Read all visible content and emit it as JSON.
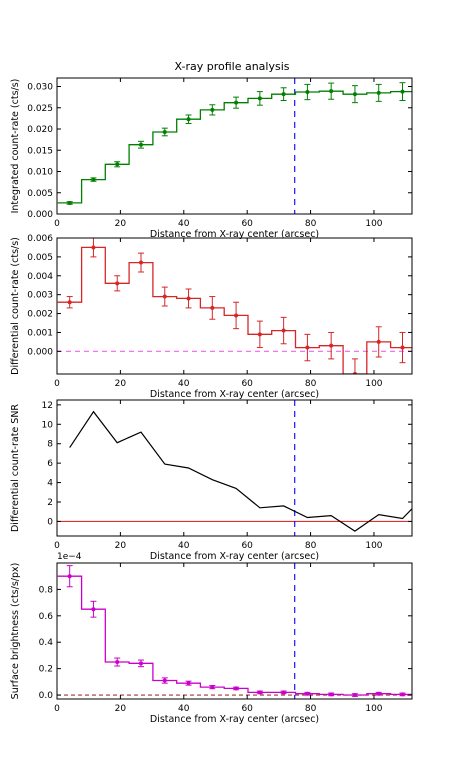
{
  "figure_title": "X-ray profile analysis",
  "colors": {
    "integrated": "#008000",
    "differential": "#d62728",
    "snr": "#000000",
    "surface": "#cc00cc",
    "cutoff": "#0000ff",
    "zero_dashed": "#ee66ee",
    "zero_solid": "#e03030"
  },
  "chart_data": [
    {
      "id": "integrated",
      "type": "step",
      "xlabel": "Distance from X-ray center (arcsec)",
      "ylabel": "Integrated count-rate (cts/s)",
      "xlim": [
        0,
        112
      ],
      "ylim": [
        0,
        0.032
      ],
      "xticks": [
        0,
        20,
        40,
        60,
        80,
        100
      ],
      "yticks": [
        0.0,
        0.005,
        0.01,
        0.015,
        0.02,
        0.025,
        0.03
      ],
      "ytick_labels": [
        "0.000",
        "0.005",
        "0.010",
        "0.015",
        "0.020",
        "0.025",
        "0.030"
      ],
      "vline_x": 75,
      "x": [
        4,
        11.5,
        19,
        26.5,
        34,
        41.5,
        49,
        56.5,
        64,
        71.5,
        79,
        86.5,
        94,
        101.5,
        109
      ],
      "y": [
        0.0026,
        0.0081,
        0.0117,
        0.0163,
        0.0193,
        0.0223,
        0.0245,
        0.0262,
        0.0272,
        0.0282,
        0.0287,
        0.0289,
        0.0282,
        0.0285,
        0.0288
      ],
      "err": [
        0.0003,
        0.0004,
        0.0006,
        0.0008,
        0.0009,
        0.001,
        0.0012,
        0.0013,
        0.0016,
        0.0015,
        0.0018,
        0.0019,
        0.002,
        0.002,
        0.0021
      ]
    },
    {
      "id": "differential",
      "type": "step",
      "xlabel": "Distance from X-ray center (arcsec)",
      "ylabel": "Differential count-rate (cts/s)",
      "xlim": [
        0,
        112
      ],
      "ylim": [
        -0.0012,
        0.006
      ],
      "xticks": [
        0,
        20,
        40,
        60,
        80,
        100
      ],
      "yticks": [
        0.0,
        0.001,
        0.002,
        0.003,
        0.004,
        0.005,
        0.006
      ],
      "ytick_labels": [
        "0.000",
        "0.001",
        "0.002",
        "0.003",
        "0.004",
        "0.005",
        "0.006"
      ],
      "zero_line": 0,
      "x": [
        4,
        11.5,
        19,
        26.5,
        34,
        41.5,
        49,
        56.5,
        64,
        71.5,
        79,
        86.5,
        94,
        101.5,
        109
      ],
      "y": [
        0.0026,
        0.0055,
        0.0036,
        0.0047,
        0.0029,
        0.0028,
        0.0023,
        0.0019,
        0.0009,
        0.0011,
        0.0002,
        0.0003,
        -0.0012,
        0.0005,
        0.0002
      ],
      "err": [
        0.0003,
        0.0005,
        0.0004,
        0.0005,
        0.0005,
        0.0005,
        0.0006,
        0.0007,
        0.0007,
        0.0007,
        0.0007,
        0.0007,
        0.0008,
        0.0008,
        0.0008
      ]
    },
    {
      "id": "snr",
      "type": "line",
      "xlabel": "Distance from X-ray center (arcsec)",
      "ylabel": "Differential count-rate SNR",
      "xlim": [
        0,
        112
      ],
      "ylim": [
        -1.5,
        12.5
      ],
      "xticks": [
        0,
        20,
        40,
        60,
        80,
        100
      ],
      "yticks": [
        0,
        2,
        4,
        6,
        8,
        10,
        12
      ],
      "ytick_labels": [
        "0",
        "2",
        "4",
        "6",
        "8",
        "10",
        "12"
      ],
      "vline_x": 75,
      "zero_line": 0,
      "x": [
        4,
        11.5,
        19,
        26.5,
        34,
        41.5,
        49,
        56.5,
        64,
        71.5,
        79,
        86.5,
        94,
        101.5,
        109,
        112
      ],
      "y": [
        7.6,
        11.3,
        8.1,
        9.2,
        5.9,
        5.5,
        4.3,
        3.4,
        1.4,
        1.6,
        0.4,
        0.6,
        -1.0,
        0.7,
        0.3,
        1.3
      ]
    },
    {
      "id": "surface",
      "type": "step",
      "xlabel": "Distance from X-ray center (arcsec)",
      "ylabel": "Surface brightness (cts/s/px)",
      "scale_label": "1e−4",
      "xlim": [
        0,
        112
      ],
      "ylim": [
        -0.03,
        1.0
      ],
      "xticks": [
        0,
        20,
        40,
        60,
        80,
        100
      ],
      "yticks": [
        0.0,
        0.2,
        0.4,
        0.6,
        0.8
      ],
      "ytick_labels": [
        "0.0",
        "0.2",
        "0.4",
        "0.6",
        "0.8"
      ],
      "vline_x": 75,
      "zero_line": 0,
      "x": [
        4,
        11.5,
        19,
        26.5,
        34,
        41.5,
        49,
        56.5,
        64,
        71.5,
        79,
        86.5,
        94,
        101.5,
        109
      ],
      "y": [
        0.9,
        0.65,
        0.25,
        0.24,
        0.11,
        0.09,
        0.06,
        0.05,
        0.02,
        0.02,
        0.01,
        0.005,
        0.0,
        0.01,
        0.005
      ],
      "err": [
        0.08,
        0.06,
        0.03,
        0.025,
        0.02,
        0.015,
        0.012,
        0.01,
        0.01,
        0.01,
        0.01,
        0.01,
        0.01,
        0.01,
        0.01
      ]
    }
  ]
}
